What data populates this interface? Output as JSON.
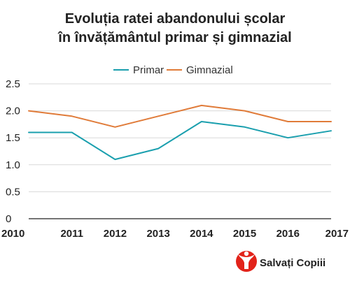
{
  "chart_data": {
    "type": "line",
    "title_lines": [
      "Evoluția ratei abandonului școlar",
      "în învățământul primar și gimnazial"
    ],
    "x": [
      "2010",
      "2011",
      "2012",
      "2013",
      "2014",
      "2015",
      "2016",
      "2017"
    ],
    "yticks": [
      "0",
      "0.5",
      "1.0",
      "1.5",
      "2.0",
      "2.5"
    ],
    "ylim": [
      0,
      2.5
    ],
    "grid": true,
    "legend_position": "top-center",
    "series": [
      {
        "name": "Primar",
        "color": "#1a9fae",
        "values": [
          1.6,
          1.6,
          1.1,
          1.3,
          1.8,
          1.7,
          1.5,
          1.63
        ]
      },
      {
        "name": "Gimnazial",
        "color": "#e07b39",
        "values": [
          2.0,
          1.9,
          1.7,
          1.9,
          2.1,
          2.0,
          1.8,
          1.8
        ]
      }
    ]
  },
  "logo": {
    "text": "Salvați Copiii",
    "color": "#e2231a"
  }
}
